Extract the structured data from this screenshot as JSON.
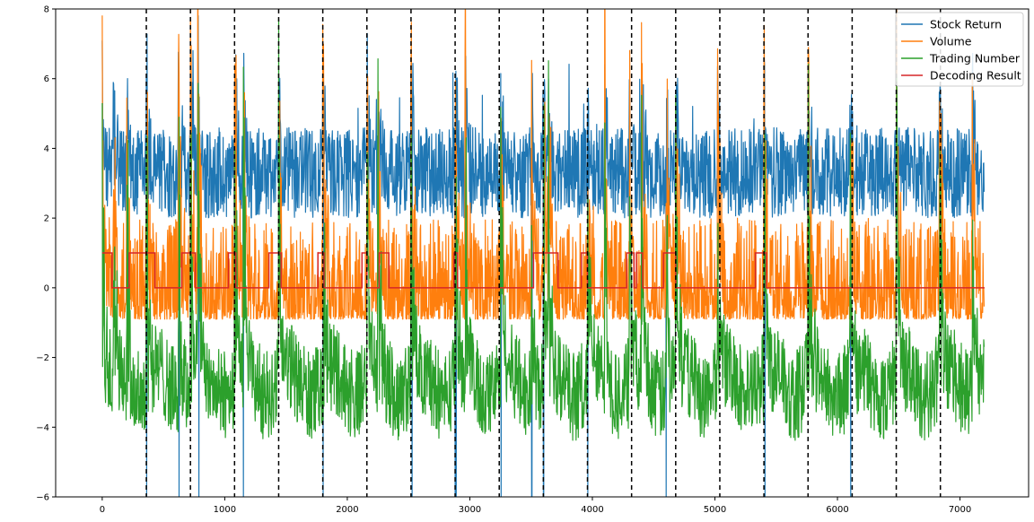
{
  "chart_data": {
    "type": "line",
    "title": "",
    "xlabel": "",
    "ylabel": "",
    "xlim": [
      -380,
      7560
    ],
    "ylim": [
      -6,
      8
    ],
    "x_ticks": [
      0,
      1000,
      2000,
      3000,
      4000,
      5000,
      6000,
      7000
    ],
    "y_ticks": [
      -6,
      -4,
      -2,
      0,
      2,
      4,
      6,
      8
    ],
    "y_tick_labels": [
      "−6",
      "−4",
      "−2",
      "0",
      "2",
      "4",
      "6",
      "8"
    ],
    "grid": false,
    "legend_position": "top-right",
    "series": [
      {
        "name": "Stock Return",
        "color": "#1f77b4",
        "n_points": 7200,
        "baseline": 3.1,
        "noise_low": 2.0,
        "noise_high": 4.6,
        "spike_max": 8.5,
        "dip_min": -6
      },
      {
        "name": "Volume",
        "color": "#ff7f0e",
        "n_points": 7200,
        "baseline": -0.3,
        "noise_low": -0.9,
        "noise_high": 2.0,
        "spike_max": 8
      },
      {
        "name": "Trading Number",
        "color": "#2ca02c",
        "n_points": 7200,
        "baseline": -2.7,
        "noise_low": -4.6,
        "noise_high": -1.0,
        "spike_max": 8
      },
      {
        "name": "Decoding Result",
        "color": "#d62728",
        "type": "step",
        "segments": [
          {
            "start": 0,
            "end": 80,
            "value": 1
          },
          {
            "start": 80,
            "end": 220,
            "value": 0
          },
          {
            "start": 220,
            "end": 430,
            "value": 1
          },
          {
            "start": 430,
            "end": 650,
            "value": 0
          },
          {
            "start": 650,
            "end": 760,
            "value": 1
          },
          {
            "start": 760,
            "end": 1030,
            "value": 0
          },
          {
            "start": 1030,
            "end": 1090,
            "value": 1
          },
          {
            "start": 1090,
            "end": 1360,
            "value": 0
          },
          {
            "start": 1360,
            "end": 1460,
            "value": 1
          },
          {
            "start": 1460,
            "end": 1760,
            "value": 0
          },
          {
            "start": 1760,
            "end": 1810,
            "value": 1
          },
          {
            "start": 1810,
            "end": 2120,
            "value": 0
          },
          {
            "start": 2120,
            "end": 2160,
            "value": 1
          },
          {
            "start": 2160,
            "end": 2260,
            "value": 0
          },
          {
            "start": 2260,
            "end": 2340,
            "value": 1
          },
          {
            "start": 2340,
            "end": 2870,
            "value": 0
          },
          {
            "start": 2870,
            "end": 2900,
            "value": 1
          },
          {
            "start": 2900,
            "end": 3520,
            "value": 0
          },
          {
            "start": 3520,
            "end": 3720,
            "value": 1
          },
          {
            "start": 3720,
            "end": 3910,
            "value": 0
          },
          {
            "start": 3910,
            "end": 3960,
            "value": 1
          },
          {
            "start": 3960,
            "end": 4280,
            "value": 0
          },
          {
            "start": 4280,
            "end": 4340,
            "value": 1
          },
          {
            "start": 4340,
            "end": 4360,
            "value": 0
          },
          {
            "start": 4360,
            "end": 4410,
            "value": 1
          },
          {
            "start": 4410,
            "end": 4580,
            "value": 0
          },
          {
            "start": 4580,
            "end": 4680,
            "value": 1
          },
          {
            "start": 4680,
            "end": 5330,
            "value": 0
          },
          {
            "start": 5330,
            "end": 5420,
            "value": 1
          },
          {
            "start": 5420,
            "end": 7200,
            "value": 0
          }
        ]
      }
    ],
    "spike_positions": [
      0,
      90,
      200,
      360,
      620,
      720,
      780,
      1080,
      1150,
      1440,
      1800,
      2160,
      2250,
      2520,
      2880,
      2960,
      3250,
      3500,
      3600,
      3640,
      3960,
      4100,
      4300,
      4400,
      4600,
      4680,
      5020,
      5400,
      5760,
      6100,
      6480,
      6830,
      7100
    ],
    "vertical_lines": {
      "style": "dashed",
      "color": "#000000",
      "x": [
        360,
        720,
        1080,
        1440,
        1800,
        2160,
        2520,
        2880,
        3240,
        3600,
        3960,
        4320,
        4680,
        5040,
        5400,
        5760,
        6120,
        6480,
        6840
      ]
    }
  }
}
